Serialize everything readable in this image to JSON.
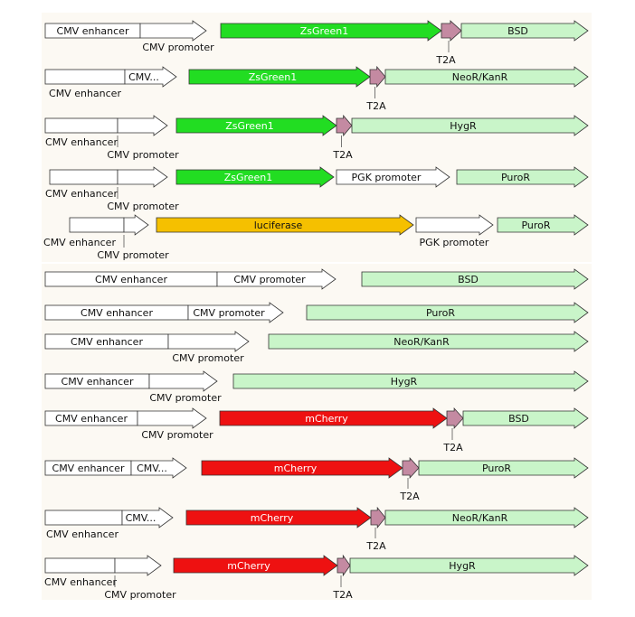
{
  "colors": {
    "enhancer": "#ffffff",
    "promoter": "#ffffff",
    "zsgreen": "#22dd22",
    "luciferase": "#f5c000",
    "mcherry": "#ee1111",
    "t2a": "#c48aa2",
    "marker": "#c9f5c9",
    "outline": "#333333"
  },
  "labels": {
    "cmv_enhancer": "CMV enhancer",
    "cmv_promoter": "CMV promoter",
    "cmv_short": "CMV...",
    "zsgreen": "ZsGreen1",
    "luciferase": "luciferase",
    "mcherry": "mCherry",
    "t2a": "T2A",
    "pgk_promoter": "PGK promoter",
    "bsd": "BSD",
    "neor": "NeoR/KanR",
    "hygr": "HygR",
    "puror": "PuroR"
  },
  "constructs": [
    {
      "id": "zsgreen-t2a-bsd",
      "elements": [
        "cmv_enhancer",
        "cmv_promoter",
        "zsgreen",
        "t2a",
        "bsd"
      ]
    },
    {
      "id": "zsgreen-t2a-neor",
      "elements": [
        "cmv_enhancer",
        "cmv_short",
        "zsgreen",
        "t2a",
        "neor"
      ]
    },
    {
      "id": "zsgreen-t2a-hygr",
      "elements": [
        "cmv_enhancer",
        "cmv_promoter",
        "zsgreen",
        "t2a",
        "hygr"
      ]
    },
    {
      "id": "zsgreen-pgk-puror",
      "elements": [
        "cmv_enhancer",
        "cmv_promoter",
        "zsgreen",
        "pgk_promoter",
        "puror"
      ]
    },
    {
      "id": "luciferase-pgk-puror",
      "elements": [
        "cmv_enhancer",
        "cmv_promoter",
        "luciferase",
        "pgk_promoter",
        "puror"
      ]
    },
    {
      "id": "cmv-bsd",
      "elements": [
        "cmv_enhancer",
        "cmv_promoter",
        "bsd"
      ]
    },
    {
      "id": "cmv-puror",
      "elements": [
        "cmv_enhancer",
        "cmv_promoter",
        "puror"
      ]
    },
    {
      "id": "cmv-neor",
      "elements": [
        "cmv_enhancer",
        "cmv_promoter",
        "neor"
      ]
    },
    {
      "id": "cmv-hygr",
      "elements": [
        "cmv_enhancer",
        "cmv_promoter",
        "hygr"
      ]
    },
    {
      "id": "mcherry-t2a-bsd",
      "elements": [
        "cmv_enhancer",
        "cmv_promoter",
        "mcherry",
        "t2a",
        "bsd"
      ]
    },
    {
      "id": "mcherry-t2a-puror",
      "elements": [
        "cmv_enhancer",
        "cmv_short",
        "mcherry",
        "t2a",
        "puror"
      ]
    },
    {
      "id": "mcherry-t2a-neor",
      "elements": [
        "cmv_enhancer",
        "cmv_short",
        "mcherry",
        "t2a",
        "neor"
      ]
    },
    {
      "id": "mcherry-t2a-hygr",
      "elements": [
        "cmv_enhancer",
        "cmv_promoter",
        "mcherry",
        "t2a",
        "hygr"
      ]
    }
  ]
}
